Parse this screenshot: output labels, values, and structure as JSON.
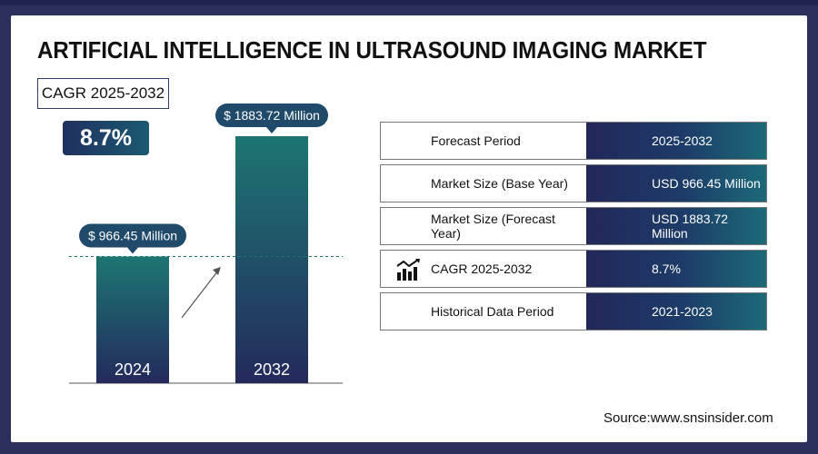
{
  "title": "ARTIFICIAL INTELLIGENCE IN ULTRASOUND IMAGING MARKET",
  "cagr": {
    "label": "CAGR 2025-2032",
    "value": "8.7%"
  },
  "chart_data": {
    "type": "bar",
    "categories": [
      "2024",
      "2032"
    ],
    "values": [
      966.45,
      1883.72
    ],
    "value_labels": [
      "$ 966.45 Million",
      "$ 1883.72 Million"
    ],
    "unit": "USD Million",
    "colors": {
      "bar_top": "#1d7672",
      "bar_bottom": "#232a5c",
      "label_bg": "#1f4a6a"
    }
  },
  "table": [
    {
      "label": "Forecast Period",
      "value": "2025-2032",
      "icon": ""
    },
    {
      "label": "Market Size (Base Year)",
      "value": "USD 966.45 Million",
      "icon": ""
    },
    {
      "label": "Market Size (Forecast Year)",
      "value": "USD 1883.72 Million",
      "icon": ""
    },
    {
      "label": "CAGR 2025-2032",
      "value": "8.7%",
      "icon": "growth-chart-icon"
    },
    {
      "label": "Historical Data Period",
      "value": "2021-2023",
      "icon": ""
    }
  ],
  "source": "Source:www.snsinsider.com",
  "colors": {
    "frame": "#2a2f5e",
    "accent": "#1f3060"
  }
}
